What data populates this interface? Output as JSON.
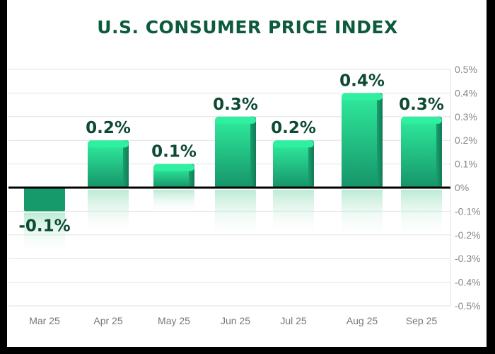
{
  "chart_data": {
    "type": "bar",
    "title": "U.S. CONSUMER PRICE INDEX",
    "categories": [
      "Mar 25",
      "Apr 25",
      "May 25",
      "Jun 25",
      "Jul 25",
      "Aug 25",
      "Sep 25"
    ],
    "values": [
      -0.1,
      0.2,
      0.1,
      0.3,
      0.2,
      0.4,
      0.3
    ],
    "data_labels": [
      "-0.1%",
      "0.2%",
      "0.1%",
      "0.3%",
      "0.2%",
      "0.4%",
      "0.3%"
    ],
    "ylim": [
      -0.5,
      0.5
    ],
    "yticks": [
      "0.5%",
      "0.4%",
      "0.3%",
      "0.2%",
      "0.1%",
      "0%",
      "-0.1%",
      "-0.2%",
      "-0.3%",
      "-0.4%",
      "-0.5%"
    ],
    "y_axis_position": "right",
    "grid": true,
    "colors": {
      "bar_top": "#2ee89a",
      "bar_bottom": "#16946a",
      "label": "#0d4a32",
      "title": "#0d5a3c",
      "zero_line": "#000000"
    }
  }
}
